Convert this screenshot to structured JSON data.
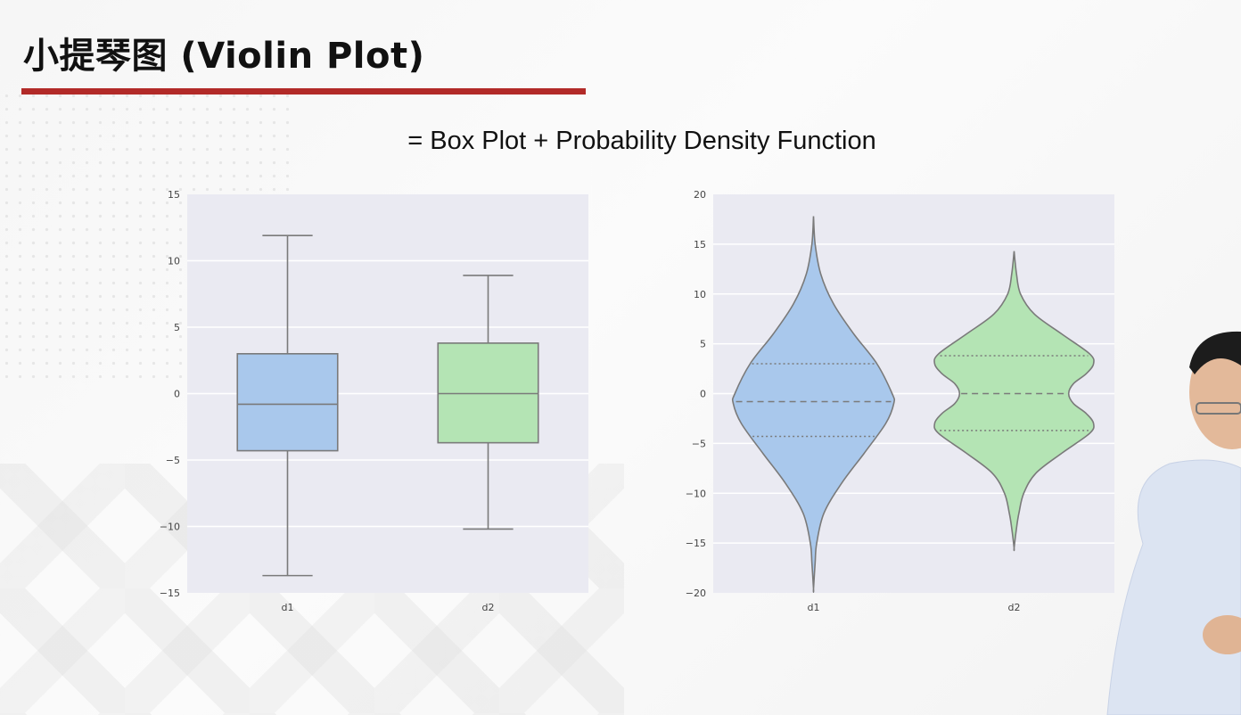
{
  "slide": {
    "title": "小提琴图 (Violin Plot)",
    "subtitle": "= Box Plot + Probability Density Function",
    "accent_color": "#b22a28"
  },
  "chart_data": [
    {
      "type": "box",
      "categories": [
        "d1",
        "d2"
      ],
      "ylim": [
        -15,
        15
      ],
      "yticks": [
        15,
        10,
        5,
        0,
        -5,
        -10,
        -15
      ],
      "ytick_labels": [
        "15",
        "10",
        "5",
        "0",
        "−5",
        "−10",
        "−15"
      ],
      "grid": true,
      "series": [
        {
          "category": "d1",
          "whisker_low": -13.7,
          "q1": -4.3,
          "median": -0.8,
          "q3": 3.0,
          "whisker_high": 11.9,
          "color": "#a9c8ec"
        },
        {
          "category": "d2",
          "whisker_low": -10.2,
          "q1": -3.7,
          "median": 0.0,
          "q3": 3.8,
          "whisker_high": 8.9,
          "color": "#b4e4b4"
        }
      ]
    },
    {
      "type": "violin",
      "categories": [
        "d1",
        "d2"
      ],
      "ylim": [
        -20,
        20
      ],
      "yticks": [
        20,
        15,
        10,
        5,
        0,
        -5,
        -10,
        -15,
        -20
      ],
      "ytick_labels": [
        "20",
        "15",
        "10",
        "5",
        "0",
        "−5",
        "−10",
        "−15",
        "−20"
      ],
      "grid": true,
      "inner": "quartile",
      "series": [
        {
          "category": "d1",
          "min": -19.6,
          "q1": -4.3,
          "median": -0.8,
          "q3": 3.0,
          "max": 17.8,
          "color": "#a9c8ec",
          "density_profile": [
            [
              17.8,
              0.0
            ],
            [
              15,
              0.02
            ],
            [
              12,
              0.09
            ],
            [
              9,
              0.25
            ],
            [
              6,
              0.5
            ],
            [
              3,
              0.79
            ],
            [
              0,
              0.98
            ],
            [
              -1,
              1.0
            ],
            [
              -3,
              0.9
            ],
            [
              -6,
              0.63
            ],
            [
              -9,
              0.35
            ],
            [
              -12,
              0.13
            ],
            [
              -15,
              0.04
            ],
            [
              -17,
              0.02
            ],
            [
              -19.6,
              0.0
            ]
          ]
        },
        {
          "category": "d2",
          "min": -15.5,
          "q1": -3.7,
          "median": 0.0,
          "q3": 3.8,
          "max": 14.3,
          "color": "#b4e4b4",
          "density_profile": [
            [
              14.3,
              0.0
            ],
            [
              12,
              0.03
            ],
            [
              10,
              0.08
            ],
            [
              8,
              0.25
            ],
            [
              6,
              0.59
            ],
            [
              4,
              0.94
            ],
            [
              3,
              0.99
            ],
            [
              2,
              0.9
            ],
            [
              1,
              0.74
            ],
            [
              0,
              0.68
            ],
            [
              -1,
              0.74
            ],
            [
              -2,
              0.9
            ],
            [
              -3,
              0.99
            ],
            [
              -4,
              0.94
            ],
            [
              -6,
              0.59
            ],
            [
              -8,
              0.27
            ],
            [
              -10,
              0.12
            ],
            [
              -12,
              0.06
            ],
            [
              -13.5,
              0.03
            ],
            [
              -15.5,
              0.0
            ]
          ]
        }
      ]
    }
  ]
}
